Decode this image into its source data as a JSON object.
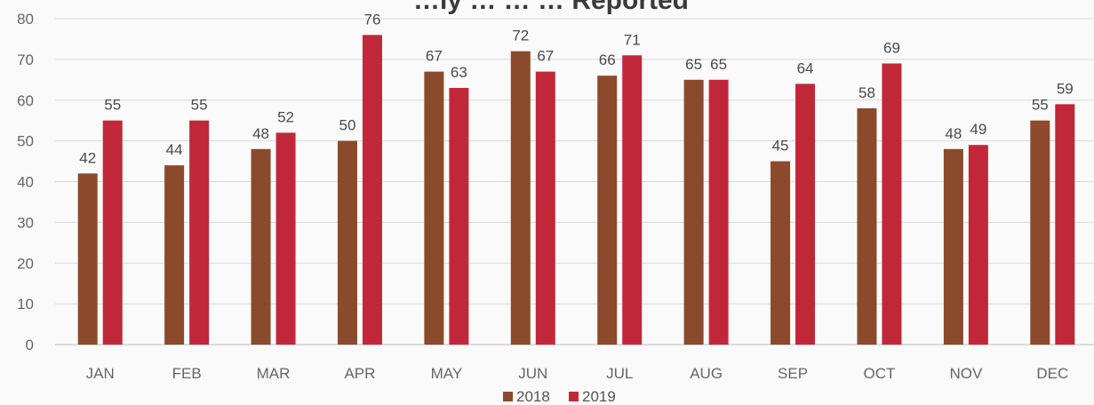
{
  "chart_data": {
    "type": "bar",
    "title": "…ly  …  …  …  Reported",
    "categories": [
      "JAN",
      "FEB",
      "MAR",
      "APR",
      "MAY",
      "JUN",
      "JUL",
      "AUG",
      "SEP",
      "OCT",
      "NOV",
      "DEC"
    ],
    "series": [
      {
        "name": "2018",
        "color": "#8b4a2b",
        "values": [
          42,
          44,
          48,
          50,
          67,
          72,
          66,
          65,
          45,
          58,
          48,
          55
        ]
      },
      {
        "name": "2019",
        "color": "#c0283a",
        "values": [
          55,
          55,
          52,
          76,
          63,
          67,
          71,
          65,
          64,
          69,
          49,
          59
        ]
      }
    ],
    "ylim": [
      0,
      80
    ],
    "yticks": [
      0,
      10,
      20,
      30,
      40,
      50,
      60,
      70,
      80
    ],
    "grid": true,
    "legend_position": "bottom-center",
    "xlabel": "",
    "ylabel": ""
  }
}
